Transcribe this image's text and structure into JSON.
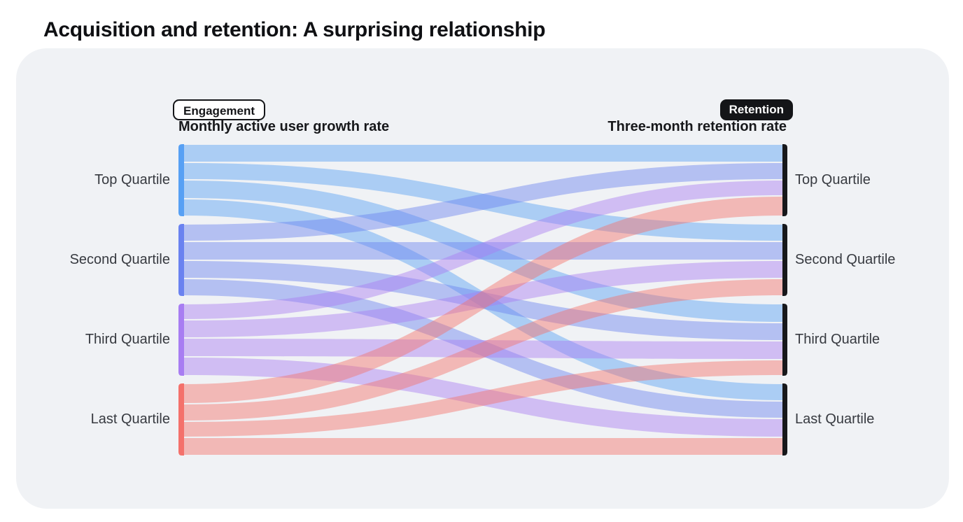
{
  "page": {
    "title": "Acquisition and retention: A surprising relationship"
  },
  "headers": {
    "left_badge": "Engagement",
    "left_subtitle": "Monthly active user growth rate",
    "right_badge": "Retention",
    "right_subtitle": "Three-month retention rate"
  },
  "chart_data": {
    "type": "sankey",
    "title": "Acquisition and retention: A surprising relationship",
    "left_group_label": "Engagement",
    "left_axis_label": "Monthly active user growth rate",
    "right_group_label": "Retention",
    "right_axis_label": "Three-month retention rate",
    "left_nodes": [
      {
        "label": "Top Quartile",
        "color": "#57a0f4"
      },
      {
        "label": "Second Quartile",
        "color": "#6a82f0"
      },
      {
        "label": "Third Quartile",
        "color": "#a87df2"
      },
      {
        "label": "Last Quartile",
        "color": "#f4716b"
      }
    ],
    "right_nodes": [
      {
        "label": "Top Quartile",
        "color": "#17181b"
      },
      {
        "label": "Second Quartile",
        "color": "#17181b"
      },
      {
        "label": "Third Quartile",
        "color": "#17181b"
      },
      {
        "label": "Last Quartile",
        "color": "#17181b"
      }
    ],
    "links": [
      {
        "source": 0,
        "target": 0,
        "value": 26
      },
      {
        "source": 0,
        "target": 1,
        "value": 25
      },
      {
        "source": 0,
        "target": 2,
        "value": 27
      },
      {
        "source": 0,
        "target": 3,
        "value": 25
      },
      {
        "source": 1,
        "target": 0,
        "value": 25
      },
      {
        "source": 1,
        "target": 1,
        "value": 27
      },
      {
        "source": 1,
        "target": 2,
        "value": 26
      },
      {
        "source": 1,
        "target": 3,
        "value": 25
      },
      {
        "source": 2,
        "target": 0,
        "value": 23
      },
      {
        "source": 2,
        "target": 1,
        "value": 26
      },
      {
        "source": 2,
        "target": 2,
        "value": 27
      },
      {
        "source": 2,
        "target": 3,
        "value": 27
      },
      {
        "source": 3,
        "target": 0,
        "value": 29
      },
      {
        "source": 3,
        "target": 1,
        "value": 25
      },
      {
        "source": 3,
        "target": 2,
        "value": 23
      },
      {
        "source": 3,
        "target": 3,
        "value": 26
      }
    ],
    "flow_opacity": 0.45,
    "layout": {
      "legend_position": "none",
      "grid": false
    }
  },
  "colors": {
    "page_bg": "#ffffff",
    "card_bg": "#f0f2f5",
    "title_text": "#0f1013",
    "label_text": "#373a40",
    "right_node_bar": "#17181b"
  }
}
